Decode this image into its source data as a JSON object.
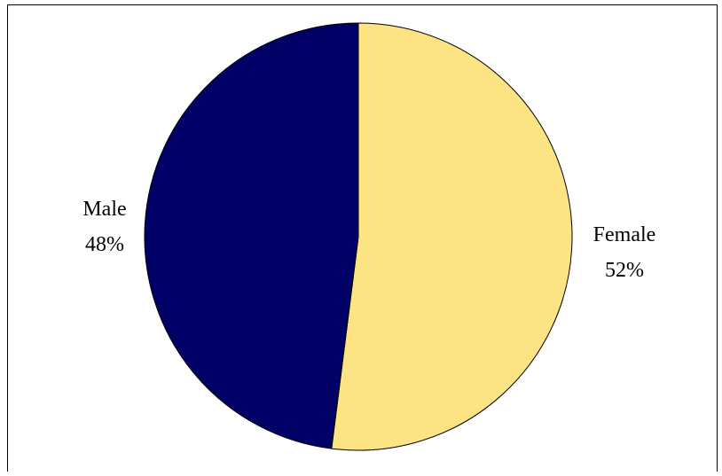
{
  "chart_data": {
    "type": "pie",
    "title": "",
    "slices": [
      {
        "label": "Female",
        "value": 52,
        "percent_label": "52%",
        "color": "#FCE484"
      },
      {
        "label": "Male",
        "value": 48,
        "percent_label": "48%",
        "color": "#000066"
      }
    ],
    "start": "top, clockwise",
    "outline_color": "#000000",
    "legend": "none",
    "labels": "outside slices"
  }
}
